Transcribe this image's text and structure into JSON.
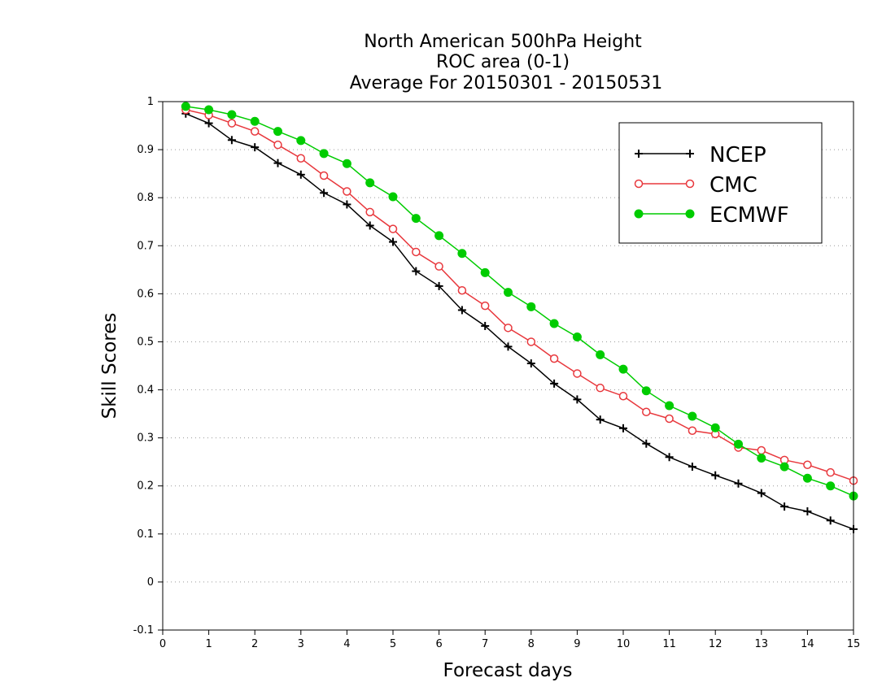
{
  "chart_data": {
    "type": "line",
    "title": "North American 500hPa Height",
    "subtitle": "ROC area (0-1)",
    "subtitle2": "Average For 20150301 - 20150531",
    "xlabel": "Forecast days",
    "ylabel": "Skill Scores",
    "xlim": [
      0,
      15
    ],
    "ylim": [
      -0.1,
      1
    ],
    "xticks": [
      "0",
      "1",
      "2",
      "3",
      "4",
      "5",
      "6",
      "7",
      "8",
      "9",
      "10",
      "11",
      "12",
      "13",
      "14",
      "15"
    ],
    "yticks": [
      "1",
      "0.9",
      "0.8",
      "0.7",
      "0.6",
      "0.5",
      "0.4",
      "0.3",
      "0.2",
      "0.1",
      "0",
      "-0.1"
    ],
    "grid": "horizontal dotted",
    "legend_position": "top-right",
    "x": [
      0.5,
      1,
      1.5,
      2,
      2.5,
      3,
      3.5,
      4,
      4.5,
      5,
      5.5,
      6,
      6.5,
      7,
      7.5,
      8,
      8.5,
      9,
      9.5,
      10,
      10.5,
      11,
      11.5,
      12,
      12.5,
      13,
      13.5,
      14,
      14.5,
      15
    ],
    "series": [
      {
        "name": "NCEP",
        "color": "#000000",
        "marker": "plus",
        "values": [
          0.975,
          0.955,
          0.92,
          0.905,
          0.872,
          0.848,
          0.81,
          0.786,
          0.742,
          0.708,
          0.647,
          0.616,
          0.566,
          0.533,
          0.49,
          0.455,
          0.413,
          0.38,
          0.338,
          0.32,
          0.288,
          0.26,
          0.24,
          0.222,
          0.205,
          0.185,
          0.157,
          0.147,
          0.128,
          0.11
        ]
      },
      {
        "name": "CMC",
        "color": "#e8383d",
        "marker": "open-circle",
        "values": [
          0.983,
          0.972,
          0.955,
          0.938,
          0.91,
          0.882,
          0.846,
          0.813,
          0.77,
          0.735,
          0.687,
          0.657,
          0.607,
          0.575,
          0.529,
          0.5,
          0.465,
          0.434,
          0.404,
          0.387,
          0.354,
          0.34,
          0.315,
          0.308,
          0.28,
          0.274,
          0.254,
          0.244,
          0.228,
          0.211
        ]
      },
      {
        "name": "ECMWF",
        "color": "#00cc00",
        "marker": "filled-circle",
        "values": [
          0.99,
          0.983,
          0.973,
          0.959,
          0.938,
          0.919,
          0.892,
          0.871,
          0.831,
          0.802,
          0.757,
          0.721,
          0.684,
          0.644,
          0.603,
          0.573,
          0.538,
          0.51,
          0.473,
          0.443,
          0.398,
          0.367,
          0.345,
          0.321,
          0.287,
          0.258,
          0.24,
          0.216,
          0.2,
          0.179
        ]
      }
    ]
  }
}
